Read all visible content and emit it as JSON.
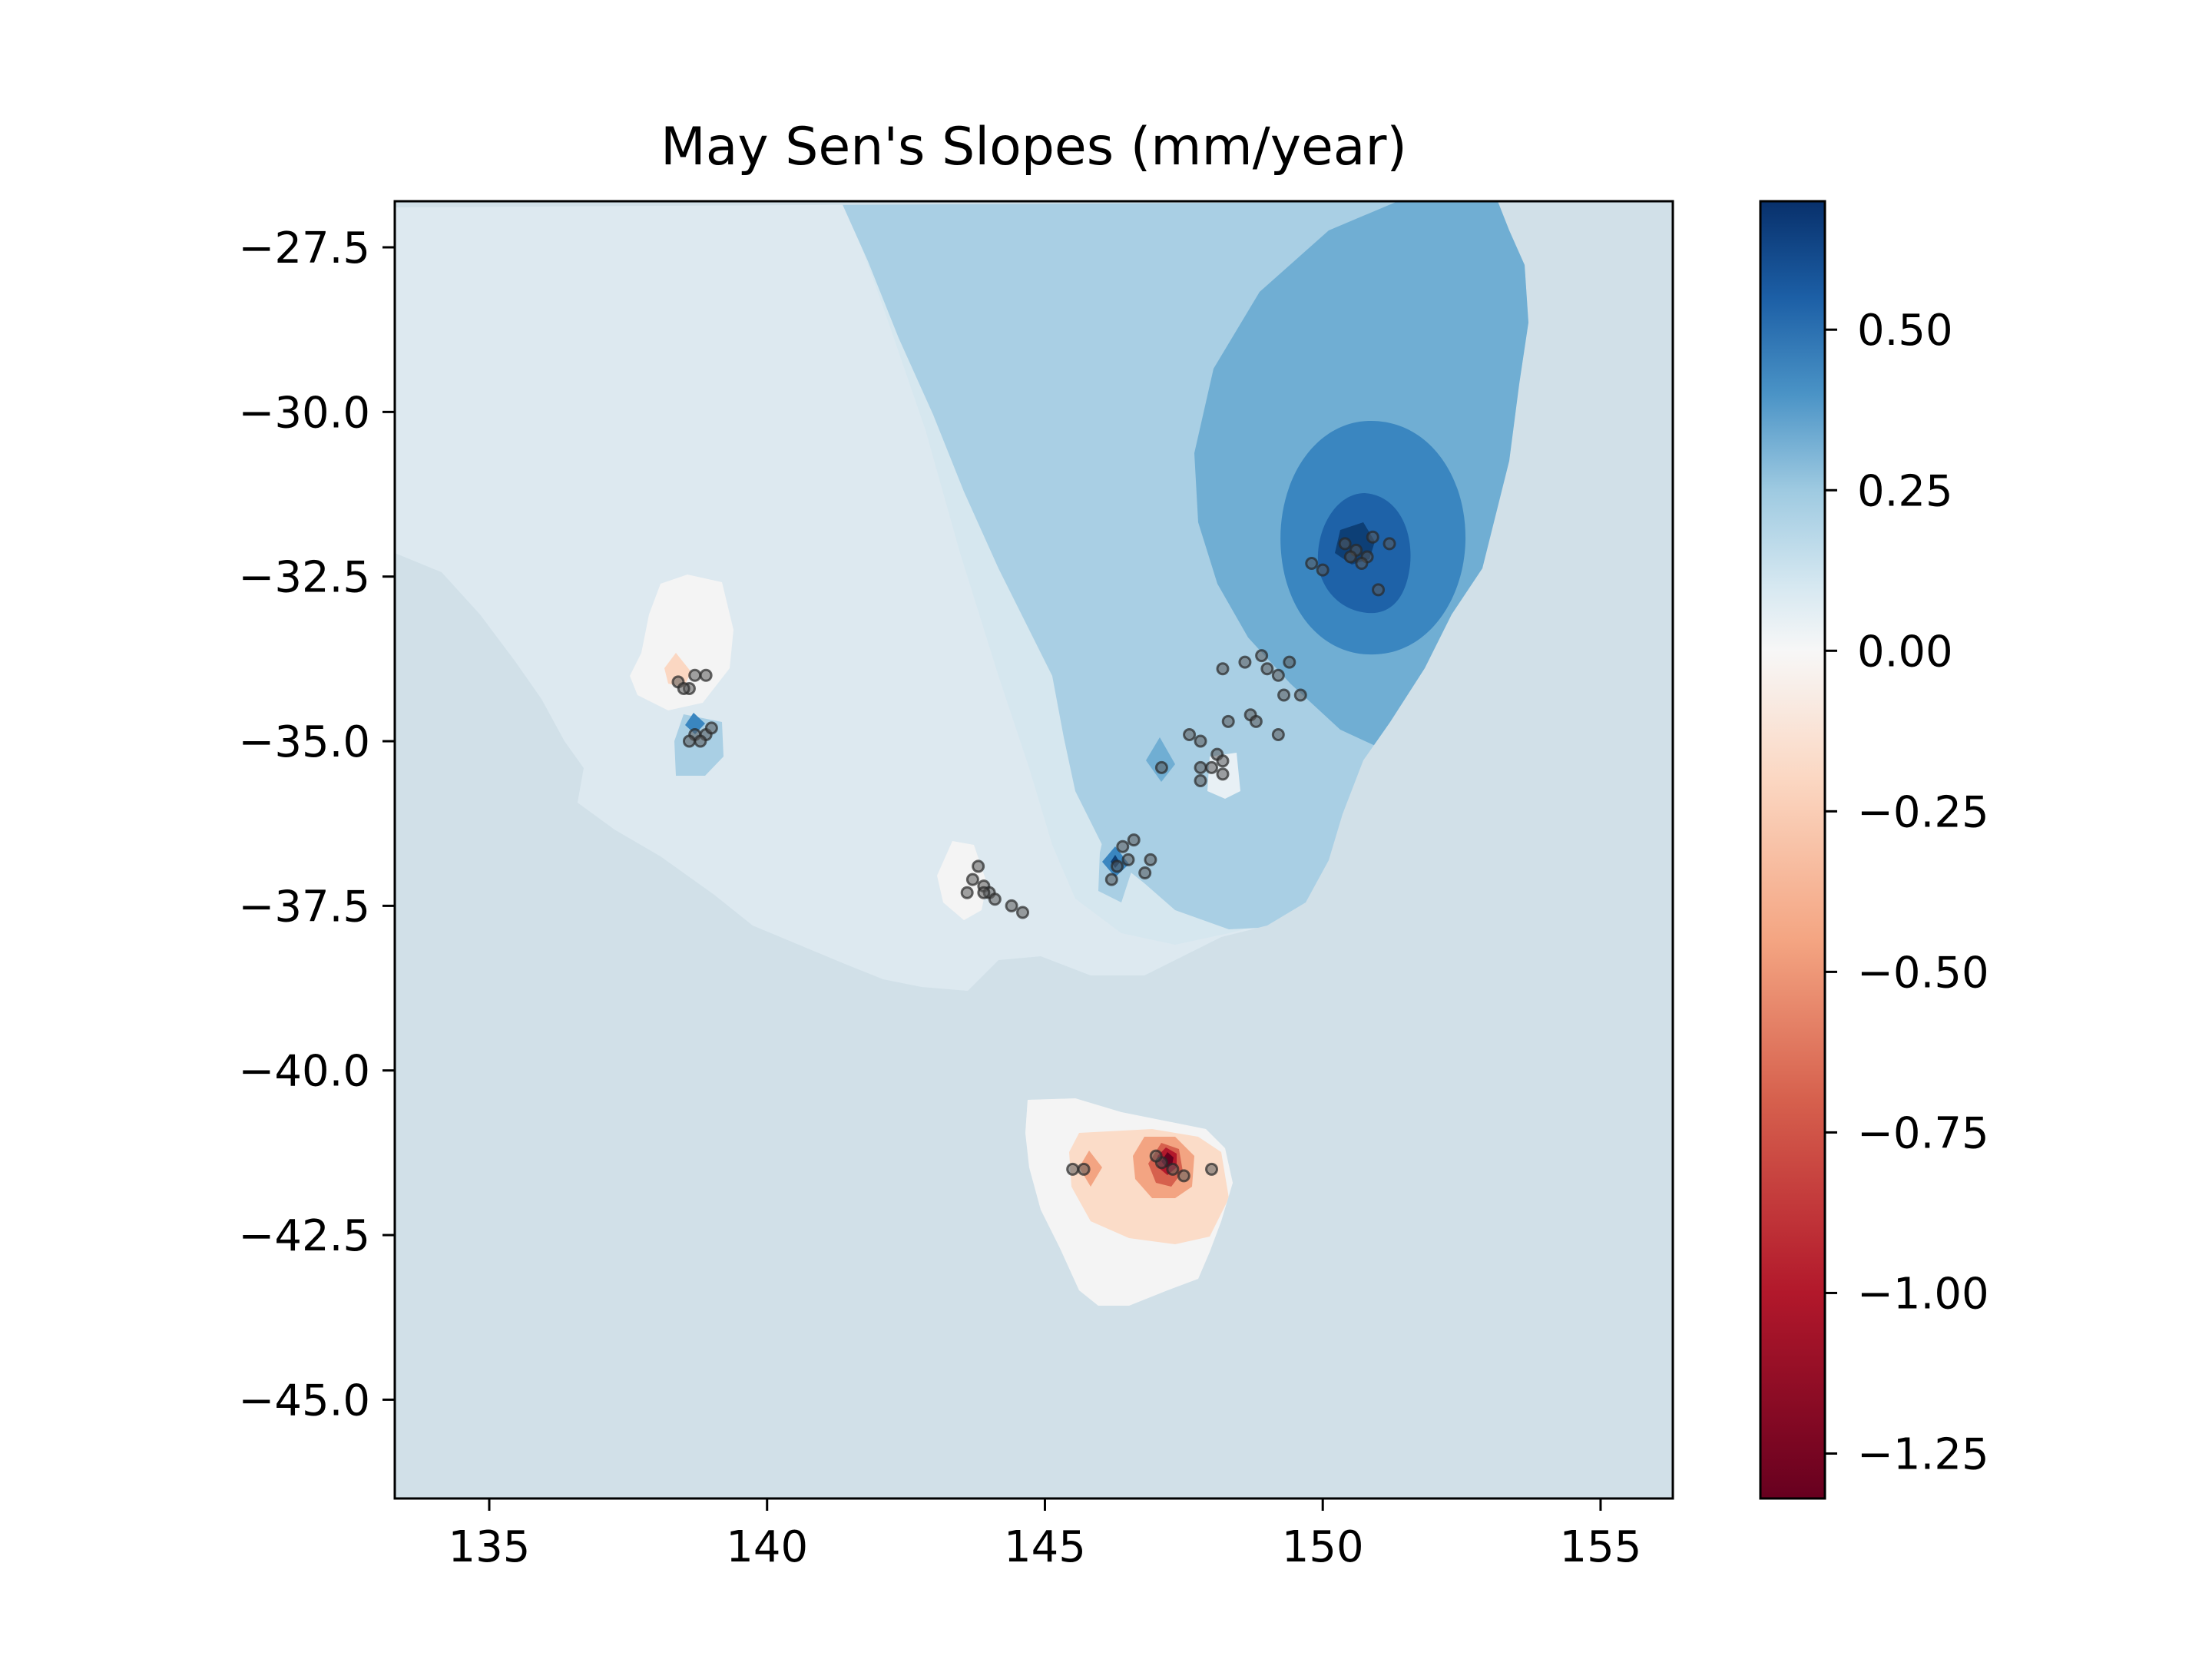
{
  "title": "May Sen's Slopes (mm/year)",
  "map": {
    "lon_range": [
      133.3,
      156.3
    ],
    "lat_range": [
      -46.5,
      -26.8
    ],
    "x_ticks": [
      135,
      140,
      145,
      150,
      155
    ],
    "x_tick_labels": [
      "135",
      "140",
      "145",
      "150",
      "155"
    ],
    "y_ticks": [
      -27.5,
      -30.0,
      -32.5,
      -35.0,
      -37.5,
      -40.0,
      -42.5,
      -45.0
    ],
    "y_tick_labels": [
      "−27.5",
      "−30.0",
      "−32.5",
      "−35.0",
      "−37.5",
      "−40.0",
      "−42.5",
      "−45.0"
    ],
    "colors": {
      "ocean": "#d1e0e8",
      "land_base": "#d6e7ef",
      "level_0_10": "#e2edf3",
      "level_10_20": "#d5e6f0",
      "level_20_30": "#a9cfe4",
      "level_30_40": "#70aed3",
      "level_40_55": "#3a86c0",
      "level_55_70": "#1e62a8",
      "level_70_80": "#0d3f76",
      "neutral": "#f4f4f4",
      "level_m10": "#fbdcc8",
      "level_m30": "#f3a482",
      "level_m60": "#d6604d",
      "level_m90": "#b2182b",
      "level_m120": "#67001f"
    },
    "station_color": "#666666"
  },
  "stations": [
    [
      150.4,
      -32.0
    ],
    [
      150.6,
      -32.1
    ],
    [
      150.8,
      -32.2
    ],
    [
      150.5,
      -32.2
    ],
    [
      150.9,
      -31.9
    ],
    [
      151.2,
      -32.0
    ],
    [
      151.0,
      -32.7
    ],
    [
      150.7,
      -32.3
    ],
    [
      150.0,
      -32.4
    ],
    [
      149.8,
      -32.3
    ],
    [
      148.2,
      -33.9
    ],
    [
      148.6,
      -33.8
    ],
    [
      149.0,
      -33.9
    ],
    [
      149.2,
      -34.0
    ],
    [
      148.9,
      -33.7
    ],
    [
      149.4,
      -33.8
    ],
    [
      149.3,
      -34.3
    ],
    [
      149.6,
      -34.3
    ],
    [
      148.7,
      -34.6
    ],
    [
      148.3,
      -34.7
    ],
    [
      148.8,
      -34.7
    ],
    [
      149.2,
      -34.9
    ],
    [
      147.6,
      -34.9
    ],
    [
      147.8,
      -35.0
    ],
    [
      148.1,
      -35.2
    ],
    [
      148.2,
      -35.3
    ],
    [
      147.8,
      -35.4
    ],
    [
      148.0,
      -35.4
    ],
    [
      148.2,
      -35.5
    ],
    [
      147.8,
      -35.6
    ],
    [
      147.1,
      -35.4
    ],
    [
      146.4,
      -36.6
    ],
    [
      146.6,
      -36.5
    ],
    [
      146.5,
      -36.8
    ],
    [
      146.3,
      -36.9
    ],
    [
      146.9,
      -36.8
    ],
    [
      146.8,
      -37.0
    ],
    [
      146.2,
      -37.1
    ],
    [
      143.8,
      -36.9
    ],
    [
      143.7,
      -37.1
    ],
    [
      143.9,
      -37.2
    ],
    [
      144.0,
      -37.3
    ],
    [
      143.6,
      -37.3
    ],
    [
      143.9,
      -37.3
    ],
    [
      144.1,
      -37.4
    ],
    [
      144.4,
      -37.5
    ],
    [
      144.6,
      -37.6
    ],
    [
      138.4,
      -34.1
    ],
    [
      138.6,
      -34.2
    ],
    [
      138.7,
      -34.0
    ],
    [
      138.9,
      -34.0
    ],
    [
      138.5,
      -34.2
    ],
    [
      138.7,
      -34.9
    ],
    [
      138.9,
      -34.9
    ],
    [
      139.0,
      -34.8
    ],
    [
      138.8,
      -35.0
    ],
    [
      138.6,
      -35.0
    ],
    [
      145.5,
      -41.5
    ],
    [
      145.7,
      -41.5
    ],
    [
      147.1,
      -41.4
    ],
    [
      147.3,
      -41.5
    ],
    [
      147.5,
      -41.6
    ],
    [
      148.0,
      -41.5
    ],
    [
      147.0,
      -41.3
    ]
  ],
  "colorbar": {
    "vmin": -1.32,
    "vmax": 0.7,
    "ticks": [
      0.5,
      0.25,
      0.0,
      -0.25,
      -0.5,
      -0.75,
      -1.0,
      -1.25
    ],
    "tick_labels": [
      "0.50",
      "0.25",
      "0.00",
      "−0.25",
      "−0.50",
      "−0.75",
      "−1.00",
      "−1.25"
    ],
    "stops": [
      [
        0.7,
        "#08306b"
      ],
      [
        0.55,
        "#1c5fa6"
      ],
      [
        0.4,
        "#4a93c6"
      ],
      [
        0.25,
        "#9ecae1"
      ],
      [
        0.1,
        "#d6e8f1"
      ],
      [
        0.0,
        "#f7f7f7"
      ],
      [
        -0.2,
        "#fbd7c2"
      ],
      [
        -0.45,
        "#f4a582"
      ],
      [
        -0.7,
        "#d6604d"
      ],
      [
        -1.0,
        "#b2182b"
      ],
      [
        -1.32,
        "#67001f"
      ]
    ]
  }
}
